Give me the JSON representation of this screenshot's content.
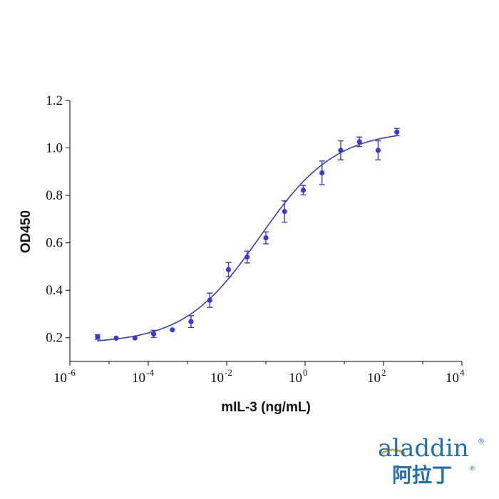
{
  "chart_data": {
    "type": "scatter",
    "title": "",
    "xlabel": "mIL-3 (ng/mL)",
    "ylabel": "OD450",
    "x_scale": "log",
    "xlim": [
      1e-06,
      10000
    ],
    "ylim": [
      0.1,
      1.2
    ],
    "x_ticks": [
      {
        "base": "10",
        "exp": "-6"
      },
      {
        "base": "10",
        "exp": "-4"
      },
      {
        "base": "10",
        "exp": "-2"
      },
      {
        "base": "10",
        "exp": "0"
      },
      {
        "base": "10",
        "exp": "2"
      },
      {
        "base": "10",
        "exp": "4"
      }
    ],
    "y_ticks": [
      "0.2",
      "0.4",
      "0.6",
      "0.8",
      "1.0",
      "1.2"
    ],
    "grid": false,
    "colors": {
      "series": "#3a3ad6",
      "axis": "#000000"
    },
    "series": [
      {
        "points": [
          {
            "x": 5.1e-06,
            "y": 0.203,
            "err": 0.01
          },
          {
            "x": 1.52e-05,
            "y": 0.198,
            "err": 0
          },
          {
            "x": 4.57e-05,
            "y": 0.199,
            "err": 0
          },
          {
            "x": 0.000137,
            "y": 0.216,
            "err": 0.015
          },
          {
            "x": 0.000412,
            "y": 0.233,
            "err": 0
          },
          {
            "x": 0.00123,
            "y": 0.268,
            "err": 0.025
          },
          {
            "x": 0.0037,
            "y": 0.358,
            "err": 0.03
          },
          {
            "x": 0.0111,
            "y": 0.487,
            "err": 0.03
          },
          {
            "x": 0.0333,
            "y": 0.54,
            "err": 0.025
          },
          {
            "x": 0.1,
            "y": 0.621,
            "err": 0.025
          },
          {
            "x": 0.3,
            "y": 0.732,
            "err": 0.045
          },
          {
            "x": 0.9,
            "y": 0.822,
            "err": 0.02
          },
          {
            "x": 2.7,
            "y": 0.895,
            "err": 0.05
          },
          {
            "x": 8.1,
            "y": 0.99,
            "err": 0.04
          },
          {
            "x": 24.3,
            "y": 1.026,
            "err": 0.02
          },
          {
            "x": 72.9,
            "y": 0.99,
            "err": 0.04
          },
          {
            "x": 219,
            "y": 1.067,
            "err": 0.015
          }
        ],
        "fit": {
          "bottom": 0.175,
          "top": 1.075,
          "ec50": 0.07,
          "hill": 0.45,
          "x_range": [
            5e-06,
            220
          ]
        }
      }
    ]
  },
  "logo": {
    "word": "aladdin",
    "chinese": "阿拉丁",
    "mark": "®"
  }
}
